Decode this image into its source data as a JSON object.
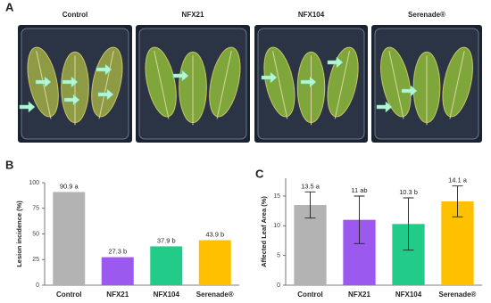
{
  "panel_a": {
    "label": "A",
    "columns": [
      "Control",
      "NFX21",
      "NFX104",
      "Serenade®"
    ]
  },
  "chart_data": [
    {
      "type": "bar",
      "panel_label": "B",
      "y_label": "Lesion incidence (%)",
      "categories": [
        "Control",
        "NFX21",
        "NFX104",
        "Serenade®"
      ],
      "values": [
        90.9,
        27.3,
        37.9,
        43.9
      ],
      "value_labels": [
        "90.9 a",
        "27.3 b",
        "37.9 b",
        "43.9 b"
      ],
      "colors": [
        "#b3b3b3",
        "#9b59f0",
        "#22cc88",
        "#ffc000"
      ],
      "ylim": [
        0,
        100
      ],
      "yticks": [
        0,
        25,
        50,
        75,
        100
      ]
    },
    {
      "type": "bar",
      "panel_label": "C",
      "y_label": "Affected Leaf Area (%)",
      "categories": [
        "Control",
        "NFX21",
        "NFX104",
        "Serenade®"
      ],
      "values": [
        13.5,
        11,
        10.3,
        14.1
      ],
      "errors": [
        2.2,
        4,
        4.4,
        2.6
      ],
      "value_labels": [
        "13.5 a",
        "11 ab",
        "10.3 b",
        "14.1 a"
      ],
      "colors": [
        "#b3b3b3",
        "#9b59f0",
        "#22cc88",
        "#ffc000"
      ],
      "ylim": [
        0,
        18
      ],
      "yticks": [
        0,
        5,
        10,
        15
      ]
    }
  ]
}
